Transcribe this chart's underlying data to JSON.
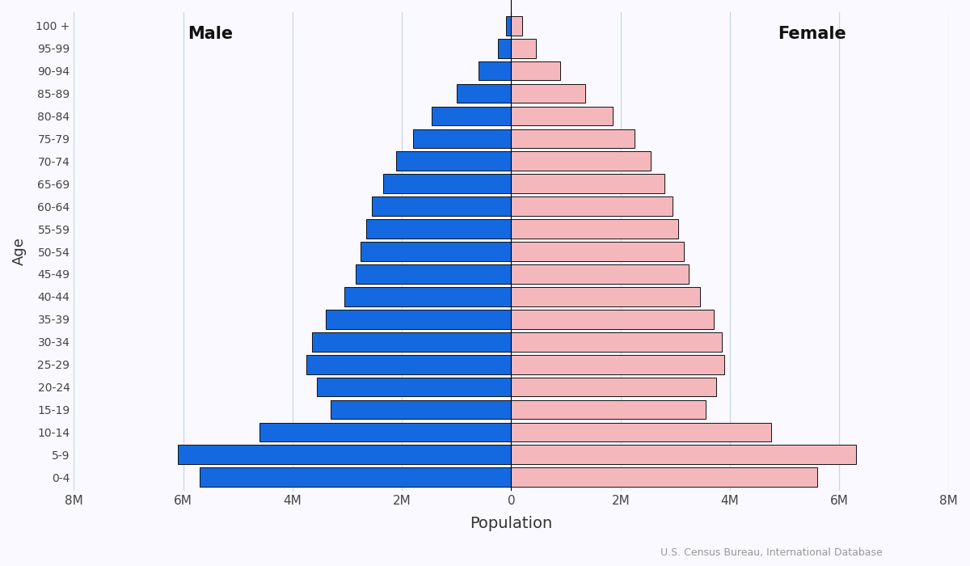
{
  "xlabel": "Population",
  "ylabel": "Age",
  "source": "U.S. Census Bureau, International Database",
  "male_label": "Male",
  "female_label": "Female",
  "age_groups": [
    "0-4",
    "5-9",
    "10-14",
    "15-19",
    "20-24",
    "25-29",
    "30-34",
    "35-39",
    "40-44",
    "45-49",
    "50-54",
    "55-59",
    "60-64",
    "65-69",
    "70-74",
    "75-79",
    "80-84",
    "85-89",
    "90-94",
    "95-99",
    "100 +"
  ],
  "male_values": [
    5.7,
    6.1,
    4.6,
    3.3,
    3.55,
    3.75,
    3.65,
    3.4,
    3.05,
    2.85,
    2.75,
    2.65,
    2.55,
    2.35,
    2.1,
    1.8,
    1.45,
    1.0,
    0.6,
    0.25,
    0.1
  ],
  "female_values": [
    5.6,
    6.3,
    4.75,
    3.55,
    3.75,
    3.9,
    3.85,
    3.7,
    3.45,
    3.25,
    3.15,
    3.05,
    2.95,
    2.8,
    2.55,
    2.25,
    1.85,
    1.35,
    0.9,
    0.45,
    0.2
  ],
  "male_color": "#1469e0",
  "female_color": "#f4b8bc",
  "bar_edge_color": "#111111",
  "bar_linewidth": 0.7,
  "xlim": 8,
  "xticks": [
    -8,
    -6,
    -4,
    -2,
    0,
    2,
    4,
    6,
    8
  ],
  "xtick_labels": [
    "8M",
    "6M",
    "4M",
    "2M",
    "0",
    "2M",
    "4M",
    "6M",
    "8M"
  ],
  "grid_color": "#c8d8e8",
  "background_color": "#f9f9ff",
  "figsize": [
    12.0,
    7.0
  ],
  "dpi": 100
}
